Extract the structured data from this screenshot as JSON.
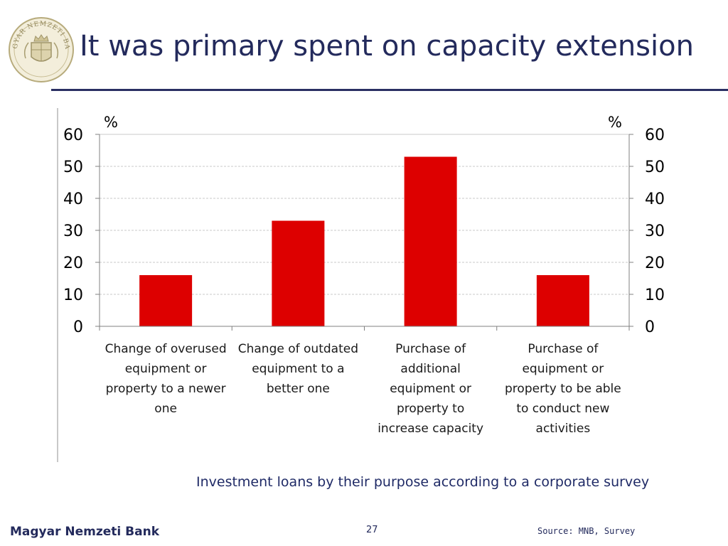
{
  "slide": {
    "title": "It was primary spent on capacity extension",
    "caption": "Investment loans by their purpose according to a corporate survey",
    "bank_name": "Magyar Nemzeti Bank",
    "page_number": "27",
    "source": "Source: MNB, Survey",
    "logo_icon": "central-bank-seal-icon",
    "logo_text": "MAGYAR NEMZETI BANK"
  },
  "colors": {
    "bar": "#dd0000",
    "title": "#232a5c",
    "caption": "#1f2a66"
  },
  "chart_data": {
    "type": "bar",
    "title": "",
    "xlabel": "",
    "ylabel": "%",
    "ylabel_right": "%",
    "ylim": [
      0,
      60
    ],
    "yticks": [
      0,
      10,
      20,
      30,
      40,
      50,
      60
    ],
    "grid": true,
    "dual_axis": true,
    "categories": [
      [
        "Change of overused",
        "equipment or",
        "property to a newer",
        "one"
      ],
      [
        "Change of outdated",
        "equipment to a",
        "better one"
      ],
      [
        "Purchase of",
        "additional",
        "equipment or",
        "property to",
        "increase capacity"
      ],
      [
        "Purchase of",
        "equipment or",
        "property to be able",
        "to conduct new",
        "activities"
      ]
    ],
    "values": [
      16,
      33,
      53,
      16
    ]
  }
}
